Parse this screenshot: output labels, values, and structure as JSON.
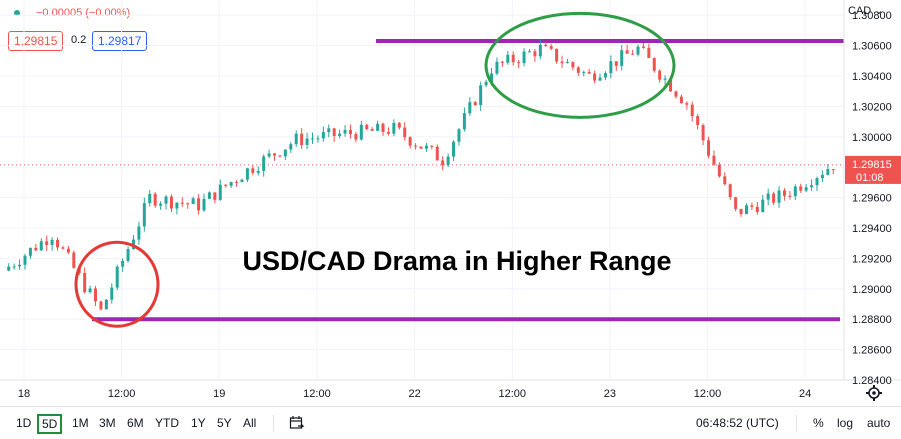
{
  "legend": {
    "change": "−0.00005 (−0.00%)",
    "bid": "1.29815",
    "spread": "0.2",
    "ask": "1.29817",
    "status_color": "#26a69a"
  },
  "currency_label": "CAD ⌄",
  "price_axis": {
    "ticks": [
      "1.30800",
      "1.30600",
      "1.30400",
      "1.30200",
      "1.30000",
      "1.29800",
      "1.29600",
      "1.29400",
      "1.29200",
      "1.29000",
      "1.28800",
      "1.28600",
      "1.28400"
    ]
  },
  "time_axis": {
    "ticks": [
      "18",
      "12:00",
      "19",
      "12:00",
      "22",
      "12:00",
      "23",
      "12:00",
      "24"
    ]
  },
  "last_price": {
    "price": "1.29815",
    "countdown": "01:08",
    "color": "#ef5350"
  },
  "annotation": {
    "title": "USD/CAD Drama in Higher Range"
  },
  "colors": {
    "up": "#26a69a",
    "down": "#ef5350",
    "level_line": "#9c27b0",
    "circle_high": "#2e9e46",
    "circle_low": "#e53935"
  },
  "toolbar": {
    "ranges": [
      "1D",
      "5D",
      "1M",
      "3M",
      "6M",
      "YTD",
      "1Y",
      "5Y",
      "All"
    ],
    "selected": "5D",
    "time": "06:48:52 (UTC)",
    "percent": "%",
    "log": "log",
    "auto": "auto"
  },
  "chart_data": {
    "type": "line",
    "title": "USD/CAD Drama in Higher Range",
    "xlabel": "",
    "ylabel": "",
    "x": [
      "18 00:00",
      "18 06:00",
      "18 12:00",
      "18 18:00",
      "19 00:00",
      "19 06:00",
      "19 12:00",
      "19 18:00",
      "22 00:00",
      "22 06:00",
      "22 12:00",
      "22 18:00",
      "23 00:00",
      "23 06:00",
      "23 12:00",
      "23 18:00",
      "24 00:00",
      "24 06:00"
    ],
    "series": [
      {
        "values": [
          1.2912,
          1.2936,
          1.2885,
          1.296,
          1.2955,
          1.2978,
          1.2998,
          1.3002,
          1.3005,
          1.2985,
          1.3045,
          1.3058,
          1.304,
          1.3058,
          1.3022,
          1.295,
          1.2962,
          1.2982
        ]
      }
    ],
    "ylim": [
      1.284,
      1.309
    ],
    "y_ticks": [
      1.284,
      1.286,
      1.288,
      1.29,
      1.292,
      1.294,
      1.296,
      1.298,
      1.3,
      1.302,
      1.304,
      1.306,
      1.308
    ],
    "horizontal_levels": [
      1.3063,
      1.288
    ],
    "last_value": 1.29815,
    "grid": true
  }
}
